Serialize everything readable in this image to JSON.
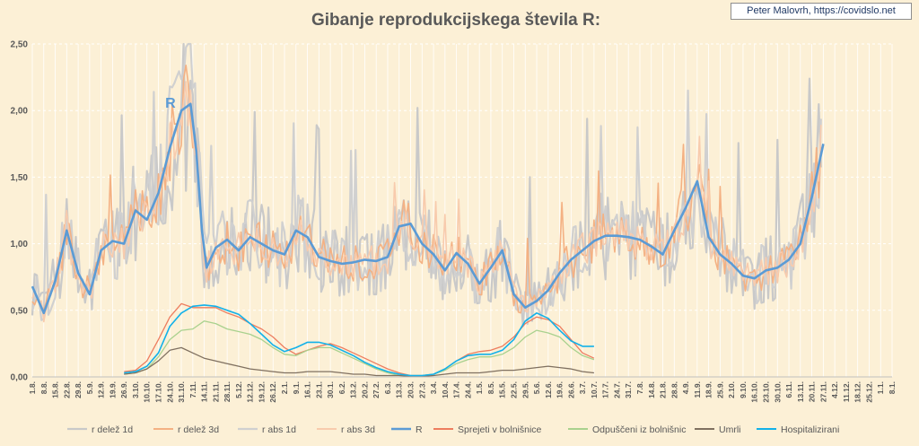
{
  "chart_data": {
    "type": "line",
    "title": "Gibanje reprodukcijskega števila R:",
    "credit": "Peter Malovrh, https://covidslo.net",
    "annotation": "R",
    "ylim": [
      0,
      2.5
    ],
    "yticks": [
      "0,00",
      "0,50",
      "1,00",
      "1,50",
      "2,00",
      "2,50"
    ],
    "grid": "vertical",
    "legend_position": "bottom",
    "x_labels": [
      "1.8.",
      "8.8.",
      "15.8.",
      "22.8.",
      "29.8.",
      "5.9.",
      "12.9.",
      "19.9.",
      "26.9.",
      "3.10.",
      "10.10.",
      "17.10.",
      "24.10.",
      "31.10.",
      "7.11.",
      "14.11.",
      "21.11.",
      "28.11.",
      "5.12.",
      "12.12.",
      "19.12.",
      "26.12.",
      "2.1.",
      "9.1.",
      "16.1.",
      "23.1.",
      "30.1.",
      "6.2.",
      "13.2.",
      "20.2.",
      "27.2.",
      "6.3.",
      "13.3.",
      "20.3.",
      "27.3.",
      "3.4.",
      "10.4.",
      "17.4.",
      "24.4.",
      "1.5.",
      "8.5.",
      "15.5.",
      "22.5.",
      "29.5.",
      "5.6.",
      "12.6.",
      "19.6.",
      "26.6.",
      "3.7.",
      "10.7.",
      "17.7.",
      "24.7.",
      "31.7.",
      "7.8.",
      "14.8.",
      "21.8.",
      "28.8.",
      "4.9.",
      "11.9.",
      "18.9.",
      "25.9.",
      "2.10.",
      "9.10.",
      "16.10.",
      "23.10.",
      "30.10.",
      "6.11.",
      "13.11.",
      "20.11.",
      "27.11.",
      "4.12.",
      "11.12.",
      "18.12.",
      "25.12.",
      "1.1.",
      "8.1."
    ],
    "series": [
      {
        "name": "r delež 1d",
        "color": "#c9c9c9",
        "width": 2.2,
        "noise": 0.32,
        "base": "R"
      },
      {
        "name": "r delež 3d",
        "color": "#f4b183",
        "width": 1.6,
        "noise": 0.17,
        "base": "R"
      },
      {
        "name": "r abs 1d",
        "color": "#d0d0d0",
        "width": 2.2,
        "noise": 0.28,
        "base": "R"
      },
      {
        "name": "r abs 3d",
        "color": "#f8cbad",
        "width": 1.6,
        "noise": 0.14,
        "base": "R"
      },
      {
        "name": "R",
        "color": "#5b9bd5",
        "width": 2.6,
        "points": [
          [
            0,
            0.68
          ],
          [
            1,
            0.48
          ],
          [
            2,
            0.72
          ],
          [
            3,
            1.1
          ],
          [
            4,
            0.78
          ],
          [
            5,
            0.62
          ],
          [
            6,
            0.95
          ],
          [
            7,
            1.02
          ],
          [
            8,
            1.0
          ],
          [
            9,
            1.25
          ],
          [
            10,
            1.18
          ],
          [
            11,
            1.38
          ],
          [
            12,
            1.72
          ],
          [
            13,
            2.0
          ],
          [
            13.8,
            2.05
          ],
          [
            14.3,
            1.7
          ],
          [
            14.8,
            1.1
          ],
          [
            15.2,
            0.82
          ],
          [
            16,
            0.97
          ],
          [
            17,
            1.03
          ],
          [
            18,
            0.95
          ],
          [
            19,
            1.05
          ],
          [
            20,
            1.0
          ],
          [
            21,
            0.95
          ],
          [
            22,
            0.92
          ],
          [
            23,
            1.1
          ],
          [
            24,
            1.05
          ],
          [
            25,
            0.9
          ],
          [
            26,
            0.87
          ],
          [
            27,
            0.85
          ],
          [
            28,
            0.86
          ],
          [
            29,
            0.88
          ],
          [
            30,
            0.87
          ],
          [
            31,
            0.9
          ],
          [
            32,
            1.13
          ],
          [
            33,
            1.15
          ],
          [
            34,
            1.0
          ],
          [
            35,
            0.92
          ],
          [
            36,
            0.8
          ],
          [
            37,
            0.93
          ],
          [
            38,
            0.85
          ],
          [
            39,
            0.7
          ],
          [
            40,
            0.82
          ],
          [
            41,
            0.95
          ],
          [
            42,
            0.62
          ],
          [
            43,
            0.52
          ],
          [
            44,
            0.57
          ],
          [
            45,
            0.65
          ],
          [
            46,
            0.78
          ],
          [
            47,
            0.88
          ],
          [
            48,
            0.95
          ],
          [
            49,
            1.02
          ],
          [
            50,
            1.06
          ],
          [
            51,
            1.06
          ],
          [
            52,
            1.05
          ],
          [
            53,
            1.03
          ],
          [
            54,
            0.98
          ],
          [
            55,
            0.92
          ],
          [
            56,
            1.1
          ],
          [
            57,
            1.27
          ],
          [
            58,
            1.47
          ],
          [
            59,
            1.05
          ],
          [
            60,
            0.92
          ],
          [
            61,
            0.85
          ],
          [
            62,
            0.76
          ],
          [
            63,
            0.74
          ],
          [
            64,
            0.8
          ],
          [
            65,
            0.82
          ],
          [
            66,
            0.88
          ],
          [
            67,
            1.0
          ],
          [
            68,
            1.35
          ],
          [
            69,
            1.75
          ]
        ]
      },
      {
        "name": "Sprejeti v bolnišnice",
        "color": "#ed7d5f",
        "width": 1.3,
        "points": [
          [
            8,
            0.04
          ],
          [
            9,
            0.05
          ],
          [
            10,
            0.12
          ],
          [
            11,
            0.28
          ],
          [
            12,
            0.45
          ],
          [
            13,
            0.55
          ],
          [
            14,
            0.52
          ],
          [
            15,
            0.52
          ],
          [
            16,
            0.52
          ],
          [
            17,
            0.48
          ],
          [
            18,
            0.45
          ],
          [
            19,
            0.4
          ],
          [
            20,
            0.36
          ],
          [
            21,
            0.3
          ],
          [
            22,
            0.22
          ],
          [
            23,
            0.17
          ],
          [
            24,
            0.2
          ],
          [
            25,
            0.23
          ],
          [
            26,
            0.25
          ],
          [
            27,
            0.22
          ],
          [
            28,
            0.18
          ],
          [
            29,
            0.14
          ],
          [
            30,
            0.1
          ],
          [
            31,
            0.06
          ],
          [
            32,
            0.03
          ],
          [
            33,
            0.01
          ],
          [
            34,
            0.01
          ],
          [
            35,
            0.02
          ],
          [
            36,
            0.06
          ],
          [
            37,
            0.12
          ],
          [
            38,
            0.17
          ],
          [
            39,
            0.19
          ],
          [
            40,
            0.2
          ],
          [
            41,
            0.23
          ],
          [
            42,
            0.3
          ],
          [
            43,
            0.4
          ],
          [
            44,
            0.45
          ],
          [
            45,
            0.43
          ],
          [
            46,
            0.38
          ],
          [
            47,
            0.28
          ],
          [
            48,
            0.18
          ],
          [
            49,
            0.14
          ]
        ]
      },
      {
        "name": "Odpuščeni iz bolnišnic",
        "color": "#a9d18e",
        "width": 1.3,
        "points": [
          [
            8,
            0.02
          ],
          [
            9,
            0.03
          ],
          [
            10,
            0.06
          ],
          [
            11,
            0.15
          ],
          [
            12,
            0.28
          ],
          [
            13,
            0.35
          ],
          [
            14,
            0.36
          ],
          [
            15,
            0.42
          ],
          [
            16,
            0.4
          ],
          [
            17,
            0.36
          ],
          [
            18,
            0.34
          ],
          [
            19,
            0.32
          ],
          [
            20,
            0.28
          ],
          [
            21,
            0.22
          ],
          [
            22,
            0.17
          ],
          [
            23,
            0.16
          ],
          [
            24,
            0.2
          ],
          [
            25,
            0.22
          ],
          [
            26,
            0.22
          ],
          [
            27,
            0.18
          ],
          [
            28,
            0.14
          ],
          [
            29,
            0.1
          ],
          [
            30,
            0.06
          ],
          [
            31,
            0.03
          ],
          [
            32,
            0.01
          ],
          [
            33,
            0.01
          ],
          [
            34,
            0.01
          ],
          [
            35,
            0.02
          ],
          [
            36,
            0.05
          ],
          [
            37,
            0.1
          ],
          [
            38,
            0.13
          ],
          [
            39,
            0.15
          ],
          [
            40,
            0.15
          ],
          [
            41,
            0.17
          ],
          [
            42,
            0.22
          ],
          [
            43,
            0.3
          ],
          [
            44,
            0.35
          ],
          [
            45,
            0.33
          ],
          [
            46,
            0.3
          ],
          [
            47,
            0.22
          ],
          [
            48,
            0.16
          ],
          [
            49,
            0.13
          ]
        ]
      },
      {
        "name": "Umrli",
        "color": "#7f7060",
        "width": 1.3,
        "points": [
          [
            8,
            0.02
          ],
          [
            9,
            0.03
          ],
          [
            10,
            0.06
          ],
          [
            11,
            0.12
          ],
          [
            12,
            0.2
          ],
          [
            13,
            0.22
          ],
          [
            14,
            0.18
          ],
          [
            15,
            0.14
          ],
          [
            16,
            0.12
          ],
          [
            17,
            0.1
          ],
          [
            18,
            0.08
          ],
          [
            19,
            0.06
          ],
          [
            20,
            0.05
          ],
          [
            21,
            0.04
          ],
          [
            22,
            0.03
          ],
          [
            23,
            0.03
          ],
          [
            24,
            0.04
          ],
          [
            25,
            0.04
          ],
          [
            26,
            0.04
          ],
          [
            27,
            0.03
          ],
          [
            28,
            0.02
          ],
          [
            29,
            0.02
          ],
          [
            30,
            0.01
          ],
          [
            31,
            0.01
          ],
          [
            32,
            0.01
          ],
          [
            33,
            0.005
          ],
          [
            34,
            0.005
          ],
          [
            35,
            0.01
          ],
          [
            36,
            0.02
          ],
          [
            37,
            0.03
          ],
          [
            38,
            0.03
          ],
          [
            39,
            0.03
          ],
          [
            40,
            0.04
          ],
          [
            41,
            0.05
          ],
          [
            42,
            0.05
          ],
          [
            43,
            0.06
          ],
          [
            44,
            0.07
          ],
          [
            45,
            0.08
          ],
          [
            46,
            0.07
          ],
          [
            47,
            0.06
          ],
          [
            48,
            0.04
          ],
          [
            49,
            0.03
          ]
        ]
      },
      {
        "name": "Hospitalizirani",
        "color": "#12b1e9",
        "width": 1.6,
        "points": [
          [
            8,
            0.03
          ],
          [
            9,
            0.04
          ],
          [
            10,
            0.08
          ],
          [
            11,
            0.18
          ],
          [
            12,
            0.38
          ],
          [
            13,
            0.48
          ],
          [
            14,
            0.53
          ],
          [
            15,
            0.54
          ],
          [
            16,
            0.53
          ],
          [
            17,
            0.5
          ],
          [
            18,
            0.47
          ],
          [
            19,
            0.4
          ],
          [
            20,
            0.32
          ],
          [
            21,
            0.24
          ],
          [
            22,
            0.19
          ],
          [
            23,
            0.22
          ],
          [
            24,
            0.26
          ],
          [
            25,
            0.26
          ],
          [
            26,
            0.24
          ],
          [
            27,
            0.2
          ],
          [
            28,
            0.16
          ],
          [
            29,
            0.11
          ],
          [
            30,
            0.07
          ],
          [
            31,
            0.04
          ],
          [
            32,
            0.02
          ],
          [
            33,
            0.01
          ],
          [
            34,
            0.01
          ],
          [
            35,
            0.02
          ],
          [
            36,
            0.06
          ],
          [
            37,
            0.12
          ],
          [
            38,
            0.16
          ],
          [
            39,
            0.17
          ],
          [
            40,
            0.17
          ],
          [
            41,
            0.2
          ],
          [
            42,
            0.28
          ],
          [
            43,
            0.42
          ],
          [
            44,
            0.48
          ],
          [
            45,
            0.44
          ],
          [
            46,
            0.35
          ],
          [
            47,
            0.27
          ],
          [
            48,
            0.23
          ],
          [
            49,
            0.23
          ]
        ]
      }
    ]
  }
}
